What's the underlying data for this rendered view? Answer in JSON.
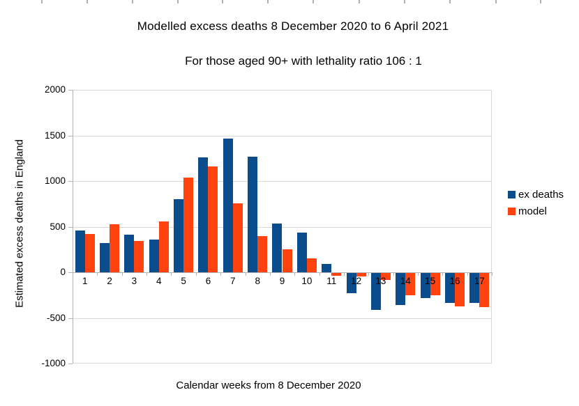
{
  "chart_data": {
    "type": "bar",
    "title": "Modelled excess deaths 8 December 2020 to 6 April 2021",
    "subtitle": "For those aged 90+ with lethality ratio 106 : 1",
    "xlabel": "Calendar weeks from 8 December 2020",
    "ylabel": "Estimated excess deaths in England",
    "categories": [
      "1",
      "2",
      "3",
      "4",
      "5",
      "6",
      "7",
      "8",
      "9",
      "10",
      "11",
      "12",
      "13",
      "14",
      "15",
      "16",
      "17"
    ],
    "series": [
      {
        "name": "ex deaths",
        "color": "#0b4d8c",
        "values": [
          455,
          320,
          410,
          360,
          800,
          1260,
          1465,
          1265,
          535,
          435,
          90,
          -230,
          -410,
          -360,
          -280,
          -335,
          -335
        ]
      },
      {
        "name": "model",
        "color": "#ff420e",
        "values": [
          420,
          525,
          345,
          560,
          1040,
          1160,
          755,
          395,
          255,
          155,
          -40,
          -45,
          -85,
          -255,
          -250,
          -370,
          -380
        ]
      }
    ],
    "ylim": [
      -1000,
      2000
    ],
    "ytick_step": 500,
    "ytick_labels": [
      "2000",
      "1500",
      "1000",
      "500",
      "0",
      "-500",
      "-1000"
    ],
    "grid": true,
    "legend_position": "right"
  },
  "colors": {
    "gridline": "#d9d9d9",
    "axis": "#b3b3b3",
    "background": "#ffffff",
    "text": "#000000"
  }
}
